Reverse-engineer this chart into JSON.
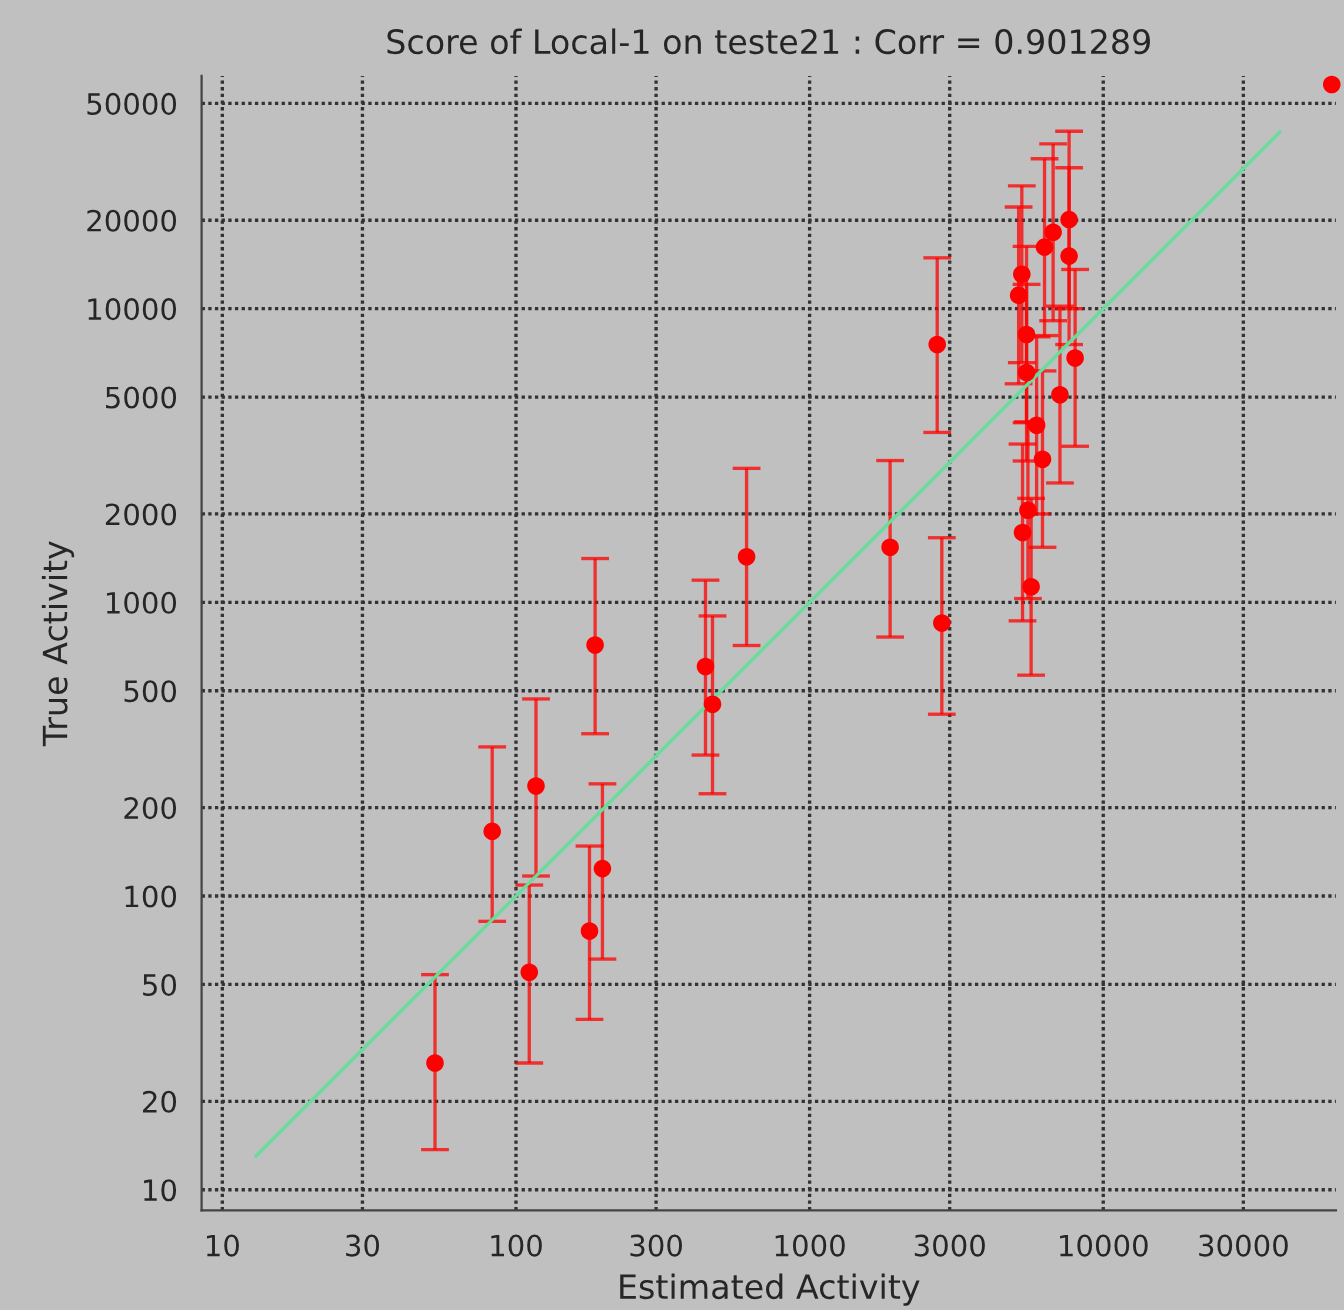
{
  "chart_data": {
    "type": "scatter",
    "title": "Score of Local-1 on teste21 : Corr = 0.901289",
    "xlabel": "Estimated Activity",
    "ylabel": "True Activity",
    "log": "xy",
    "grid": true,
    "xlim": [
      8.5,
      62000
    ],
    "ylim": [
      8.5,
      62000
    ],
    "xticks": [
      10,
      30,
      100,
      300,
      1000,
      3000,
      10000,
      30000
    ],
    "yticks": [
      10,
      20,
      50,
      100,
      200,
      500,
      1000,
      2000,
      5000,
      10000,
      20000,
      50000
    ],
    "series": [
      {
        "marker": "circle",
        "color": "#ff0000",
        "x": [
          53,
          83,
          111,
          117,
          178,
          197,
          186,
          442,
          467,
          610,
          2720,
          1880,
          2820,
          5280,
          5150,
          5480,
          5480,
          6310,
          6750,
          7650,
          7650,
          8020,
          7120,
          5930,
          6210,
          5540,
          5310,
          5680,
          60000
        ],
        "values": [
          27,
          166,
          55,
          237,
          76,
          124,
          716,
          605,
          450,
          1430,
          7550,
          1540,
          851,
          13100,
          11100,
          8170,
          6060,
          16200,
          18200,
          20100,
          15100,
          6790,
          5090,
          4010,
          3070,
          2060,
          1730,
          1130,
          58000
        ],
        "errors": [
          [
            13.7,
            54
          ],
          [
            82,
            322
          ],
          [
            27,
            109
          ],
          [
            117,
            469
          ],
          [
            38,
            148
          ],
          [
            61,
            241
          ],
          [
            357,
            1410
          ],
          [
            302,
            1190
          ],
          [
            223,
            899
          ],
          [
            713,
            2860
          ],
          [
            3790,
            14900
          ],
          [
            762,
            3040
          ],
          [
            416,
            1660
          ],
          [
            6550,
            26200
          ],
          [
            5550,
            22200
          ],
          [
            4090,
            16300
          ],
          [
            3030,
            12100
          ],
          [
            8100,
            32400
          ],
          [
            9100,
            36400
          ],
          [
            10000,
            40200
          ],
          [
            7550,
            30200
          ],
          [
            3400,
            13600
          ],
          [
            2550,
            10200
          ],
          [
            2000,
            8020
          ],
          [
            1540,
            6140
          ],
          [
            1030,
            4120
          ],
          [
            865,
            3460
          ],
          [
            565,
            2260
          ],
          null
        ]
      },
      {
        "type": "line",
        "marker": "none",
        "color": "#66dd99",
        "x": [
          13,
          40000
        ],
        "values": [
          13,
          40000
        ]
      }
    ]
  }
}
